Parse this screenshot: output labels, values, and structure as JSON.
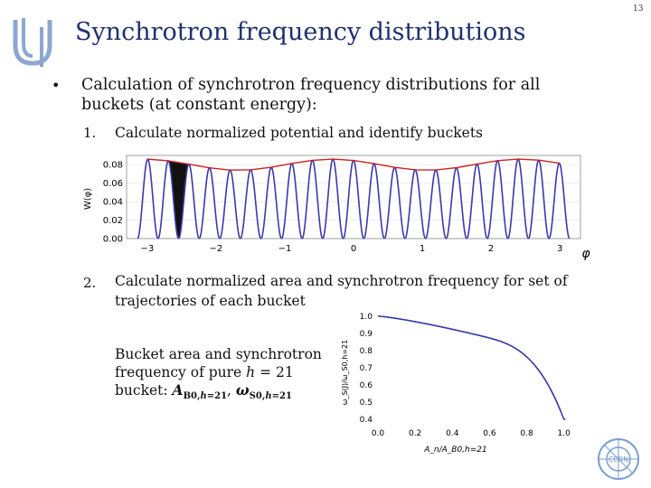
{
  "slide": {
    "number": "13"
  },
  "title": "Synchrotron frequency distributions",
  "bullet": {
    "symbol": "•",
    "text": "Calculation of synchrotron frequency distributions for all buckets (at constant energy):"
  },
  "steps": [
    {
      "num": "1.",
      "text": "Calculate normalized potential and identify buckets"
    },
    {
      "num": "2.",
      "text": "Calculate normalized area and synchrotron frequency for set of trajectories of each bucket"
    }
  ],
  "note": {
    "line1": "Bucket area and synchrotron",
    "line2_a": "frequency of pure ",
    "line2_h": "h",
    "line2_b": " = 21",
    "line3_a": "bucket: ",
    "line3_A": "A",
    "line3_Asub": "B0,",
    "line3_Ah": "h",
    "line3_Asub2": "=21",
    "line3_sep": ", ",
    "line3_w": "ω",
    "line3_wsub": "S0,",
    "line3_wh": "h",
    "line3_wsub2": "=21"
  },
  "icons": [
    "university-logo-icon",
    "cern-logo-icon"
  ],
  "colors": {
    "title": "#20306f",
    "curve": "#3a3aaa",
    "tops": "#d02020"
  },
  "chart_data": [
    {
      "type": "line",
      "title": "",
      "xlabel": "φ",
      "ylabel": "W(φ)",
      "x_ticks": [
        "−3",
        "−2",
        "−1",
        "0",
        "1",
        "2",
        "3"
      ],
      "y_ticks": [
        "0.00",
        "0.02",
        "0.04",
        "0.06",
        "0.08"
      ],
      "xlim": [
        -3.3,
        3.3
      ],
      "ylim": [
        0,
        0.09
      ],
      "harmonic": 21,
      "series": [
        {
          "values_description": "potential well curve"
        }
      ]
    },
    {
      "type": "line",
      "title": "",
      "xlabel": "A_n/A_B0,h=21",
      "ylabel": "ω_S(J)/ω_S0,h=21",
      "x_ticks": [
        "0.0",
        "0.2",
        "0.4",
        "0.6",
        "0.8",
        "1.0"
      ],
      "y_ticks": [
        "0.4",
        "0.5",
        "0.6",
        "0.7",
        "0.8",
        "0.9",
        "1.0"
      ],
      "xlim": [
        0,
        1.05
      ],
      "ylim": [
        0.38,
        1.02
      ],
      "curve_count": 12
    }
  ]
}
